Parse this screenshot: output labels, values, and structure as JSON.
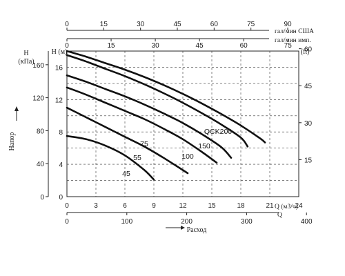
{
  "chart_data": {
    "type": "line",
    "title": "",
    "x_axes": {
      "us_gpm": {
        "label": "гал/мин США",
        "ticks": [
          0,
          15,
          30,
          45,
          60,
          75,
          90
        ]
      },
      "imp_gpm": {
        "label": "гал/мин имп.",
        "ticks": [
          0,
          15,
          30,
          45,
          60,
          75
        ]
      },
      "m3h": {
        "label": "Q (м3/ч)",
        "ticks": [
          0,
          3,
          6,
          9,
          12,
          15,
          18,
          21,
          24
        ],
        "range": [
          0,
          24
        ]
      },
      "lpm": {
        "label": "Q",
        "ticks": [
          0,
          100,
          200,
          300,
          400
        ]
      },
      "caption": "Расход"
    },
    "y_axes": {
      "kpa": {
        "label_top": "H",
        "label_unit": "(кПа)",
        "ticks": [
          0,
          40,
          80,
          120,
          160
        ]
      },
      "m": {
        "label": "H (м)",
        "ticks": [
          0,
          4,
          8,
          12,
          16
        ],
        "range": [
          0,
          18
        ]
      },
      "ft": {
        "label": "(ft)",
        "ticks": [
          15,
          30,
          45,
          60
        ]
      },
      "caption": "Напор"
    },
    "grid": "dashed",
    "series": [
      {
        "name": "45",
        "x": [
          0,
          2,
          4,
          6,
          8,
          9
        ],
        "y": [
          7.5,
          7.1,
          6.3,
          5.1,
          3.3,
          2.1
        ]
      },
      {
        "name": "55",
        "x": [
          0,
          2,
          4,
          6,
          8,
          10,
          12.5
        ],
        "y": [
          11,
          9.8,
          8.6,
          7.4,
          6.2,
          4.8,
          2.9
        ]
      },
      {
        "name": "75",
        "x": [
          0,
          2,
          4,
          6,
          8,
          10,
          12,
          14,
          15.5
        ],
        "y": [
          13.5,
          12.6,
          11.6,
          10.6,
          9.6,
          8.4,
          7.1,
          5.5,
          4.2
        ]
      },
      {
        "name": "100",
        "x": [
          0,
          2,
          4,
          6,
          8,
          10,
          12,
          14,
          16,
          17
        ],
        "y": [
          15,
          14.2,
          13.3,
          12.4,
          11.4,
          10.3,
          9.1,
          7.7,
          6.1,
          4.8
        ]
      },
      {
        "name": "150",
        "x": [
          0,
          2,
          4,
          6,
          8,
          10,
          12,
          14,
          16,
          18,
          18.7
        ],
        "y": [
          17.5,
          16.7,
          15.8,
          14.9,
          13.9,
          12.8,
          11.6,
          10.3,
          8.9,
          7.3,
          6.2
        ]
      },
      {
        "name": "QCK200",
        "x": [
          0,
          2,
          4,
          6,
          8,
          10,
          12,
          14,
          16,
          18,
          20,
          20.5
        ],
        "y": [
          18,
          17.3,
          16.5,
          15.7,
          14.8,
          13.8,
          12.7,
          11.5,
          10.2,
          8.8,
          7.2,
          6.7
        ]
      }
    ]
  }
}
